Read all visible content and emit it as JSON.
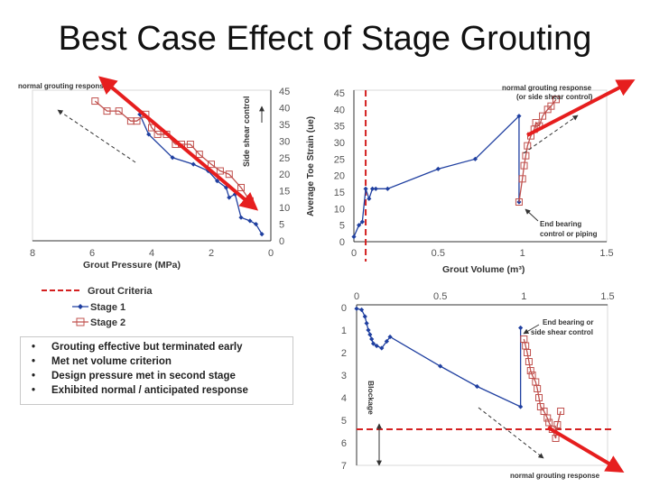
{
  "slide": {
    "title": "Best Case Effect of Stage Grouting"
  },
  "colors": {
    "stage1": "#1f3fa0",
    "stage2": "#c0504d",
    "criteria": "#d42020",
    "arrow": "#e61e1e"
  },
  "legend": {
    "criteria": "Grout Criteria",
    "stage1": "Stage 1",
    "stage2": "Stage 2"
  },
  "notes": [
    "Grouting effective but terminated early",
    "Met net volume criterion",
    "Design pressure met in second stage",
    "Exhibited normal / anticipated response"
  ],
  "chart_data": [
    {
      "id": "pressure",
      "type": "line",
      "xlabel": "Grout Pressure (MPa)",
      "xlim": [
        8,
        0
      ],
      "xticks": [
        "8",
        "6",
        "4",
        "2",
        "0"
      ],
      "ylabel": "Side shear control",
      "ylim": [
        0,
        45
      ],
      "yticks": [
        "0",
        "5",
        "10",
        "15",
        "20",
        "25",
        "30",
        "35",
        "40",
        "45"
      ],
      "annotation": "normal grouting response",
      "series": [
        {
          "name": "Stage 1",
          "x": [
            4.4,
            4.1,
            3.3,
            2.6,
            2.1,
            1.8,
            1.5,
            1.4,
            1.2,
            1.0,
            0.7,
            0.5,
            0.3
          ],
          "y": [
            38,
            32,
            25,
            23,
            21,
            18,
            16,
            13,
            14,
            7,
            6,
            5,
            2
          ]
        },
        {
          "name": "Stage 2",
          "x": [
            5.9,
            5.5,
            5.1,
            4.7,
            4.5,
            4.2,
            4.0,
            3.8,
            3.5,
            3.2,
            3.0,
            2.7,
            2.4,
            2.0,
            1.7,
            1.4,
            1.0,
            0.7
          ],
          "y": [
            42,
            39,
            39,
            36,
            36,
            38,
            34,
            32,
            32,
            29,
            29,
            29,
            26,
            23,
            21,
            20,
            16,
            12
          ]
        }
      ]
    },
    {
      "id": "strain",
      "type": "line",
      "xlabel": "Grout Volume (m³)",
      "xlim": [
        0,
        1.5
      ],
      "xticks": [
        "0",
        "0.5",
        "1",
        "1.5"
      ],
      "ylabel": "Average Toe Strain (ue)",
      "ylim": [
        0,
        45
      ],
      "yticks": [
        "0",
        "5",
        "10",
        "15",
        "20",
        "25",
        "30",
        "35",
        "40",
        "45"
      ],
      "criteria_x": 0.07,
      "annotation_top": "normal grouting response",
      "annotation_top2": "(or side shear control)",
      "annotation_bottom": "End bearing",
      "annotation_bottom2": "control or piping",
      "series": [
        {
          "name": "Stage 1",
          "x": [
            0.0,
            0.03,
            0.05,
            0.07,
            0.09,
            0.11,
            0.13,
            0.2,
            0.5,
            0.72,
            0.98,
            0.98
          ],
          "y": [
            1.5,
            5,
            6,
            16,
            13,
            16,
            16,
            16,
            22,
            25,
            38,
            12
          ]
        },
        {
          "name": "Stage 2",
          "x": [
            0.98,
            1.0,
            1.01,
            1.02,
            1.03,
            1.05,
            1.07,
            1.08,
            1.1,
            1.12,
            1.15,
            1.17,
            1.2
          ],
          "y": [
            12,
            19,
            23,
            26,
            29,
            32,
            34,
            36,
            35,
            38,
            40,
            41,
            43
          ]
        }
      ]
    },
    {
      "id": "volume",
      "type": "line",
      "xlim": [
        0,
        1.5
      ],
      "xticks": [
        "0",
        "0.5",
        "1",
        "1.5"
      ],
      "ylim": [
        0,
        7
      ],
      "yticks": [
        "0",
        "1",
        "2",
        "3",
        "4",
        "5",
        "6",
        "7"
      ],
      "ylabel": "Blockage",
      "criteria_y": 5.4,
      "annotation_top": "End bearing or",
      "annotation_top2": "side shear control",
      "annotation_bottom": "normal grouting response",
      "series": [
        {
          "name": "Stage 1",
          "x": [
            0.0,
            0.03,
            0.05,
            0.06,
            0.07,
            0.08,
            0.09,
            0.1,
            0.12,
            0.15,
            0.18,
            0.2,
            0.5,
            0.72,
            0.98,
            0.98
          ],
          "y": [
            0.05,
            0.1,
            0.4,
            0.7,
            1.0,
            1.2,
            1.4,
            1.6,
            1.7,
            1.8,
            1.5,
            1.3,
            2.6,
            3.5,
            4.4,
            0.9
          ]
        },
        {
          "name": "Stage 2",
          "x": [
            1.0,
            1.01,
            1.02,
            1.03,
            1.04,
            1.05,
            1.07,
            1.08,
            1.09,
            1.1,
            1.12,
            1.14,
            1.15,
            1.17,
            1.19,
            1.2,
            1.22
          ],
          "y": [
            1.4,
            1.7,
            2.0,
            2.4,
            2.8,
            3.0,
            3.3,
            3.6,
            4.0,
            4.4,
            4.6,
            4.9,
            5.1,
            5.4,
            5.8,
            5.2,
            4.6
          ]
        }
      ]
    }
  ]
}
